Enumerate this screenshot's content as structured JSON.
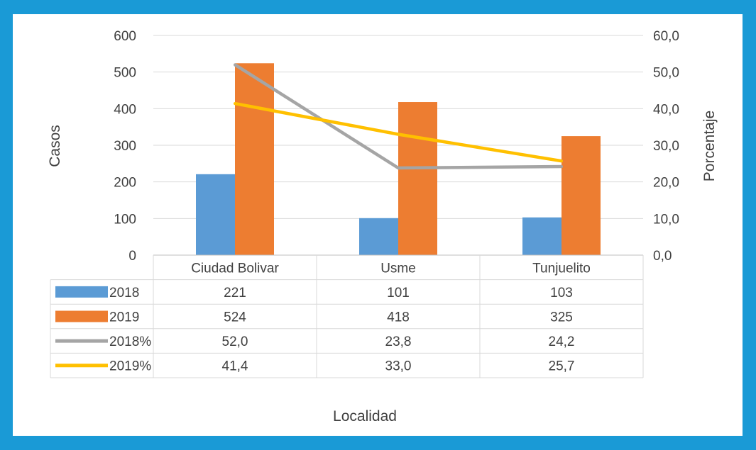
{
  "chart_data": {
    "type": "bar",
    "categories": [
      "Ciudad Bolivar",
      "Usme",
      "Tunjuelito"
    ],
    "series": [
      {
        "name": "2018",
        "type": "bar",
        "axis": "left",
        "color": "#5b9bd5",
        "values": [
          221,
          101,
          103
        ]
      },
      {
        "name": "2019",
        "type": "bar",
        "axis": "left",
        "color": "#ed7d31",
        "values": [
          524,
          418,
          325
        ]
      },
      {
        "name": "2018%",
        "type": "line",
        "axis": "right",
        "color": "#a5a5a5",
        "values": [
          52.0,
          23.8,
          24.2
        ]
      },
      {
        "name": "2019%",
        "type": "line",
        "axis": "right",
        "color": "#ffc000",
        "values": [
          41.4,
          33.0,
          25.7
        ]
      }
    ],
    "table_values": [
      [
        "221",
        "101",
        "103"
      ],
      [
        "524",
        "418",
        "325"
      ],
      [
        "52,0",
        "23,8",
        "24,2"
      ],
      [
        "41,4",
        "33,0",
        "25,7"
      ]
    ],
    "xlabel": "Localidad",
    "ylabel": "Casos",
    "y2label": "Porcentaje",
    "ylim": [
      0,
      600
    ],
    "y2lim": [
      0,
      60
    ],
    "yticks": [
      "0",
      "100",
      "200",
      "300",
      "400",
      "500",
      "600"
    ],
    "y2ticks": [
      "0,0",
      "10,0",
      "20,0",
      "30,0",
      "40,0",
      "50,0",
      "60,0"
    ],
    "grid": true,
    "legend": "data-table"
  },
  "colors": {
    "frame": "#1a9ad6",
    "gridline": "#d9d9d9",
    "text": "#404040"
  }
}
